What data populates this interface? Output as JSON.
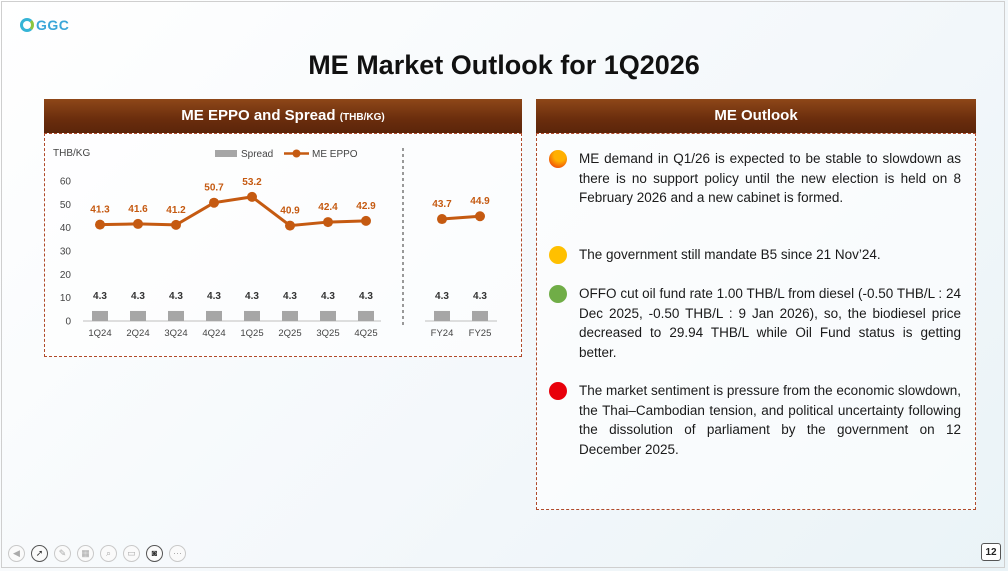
{
  "logo": {
    "text": "GGC"
  },
  "slide": {
    "title": "ME Market Outlook for 1Q2026",
    "page_number": "12"
  },
  "left_panel": {
    "title": "ME EPPO and Spread",
    "unit": "(THB/KG)"
  },
  "right_panel": {
    "title": "ME Outlook"
  },
  "chart_data": {
    "type": "bar+line",
    "ylabel": "THB/KG",
    "ylim": [
      0,
      60
    ],
    "yticks": [
      0,
      10,
      20,
      30,
      40,
      50,
      60
    ],
    "grid": false,
    "legend": [
      "Spread",
      "ME EPPO"
    ],
    "categories": [
      "1Q24",
      "2Q24",
      "3Q24",
      "4Q24",
      "1Q25",
      "2Q25",
      "3Q25",
      "4Q25",
      "FY24",
      "FY25"
    ],
    "series": [
      {
        "name": "Spread",
        "kind": "bar",
        "values": [
          4.3,
          4.3,
          4.3,
          4.3,
          4.3,
          4.3,
          4.3,
          4.3,
          4.3,
          4.3
        ]
      },
      {
        "name": "ME EPPO",
        "kind": "line",
        "segments": [
          [
            0,
            7
          ],
          [
            8,
            9
          ]
        ],
        "values": [
          41.3,
          41.6,
          41.2,
          50.7,
          53.2,
          40.9,
          42.4,
          42.9,
          43.7,
          44.9
        ]
      }
    ],
    "colors": {
      "spread": "#a6a6a6",
      "eppo": "#c55a11"
    }
  },
  "outlook": [
    {
      "color": "#ffb000",
      "gradient": "#e8240c",
      "text": "ME demand in Q1/26 is expected to be stable to slowdown as there is no support policy until the new election is held  on 8 February 2026 and a new cabinet is formed."
    },
    {
      "color": "#ffc000",
      "gradient": "",
      "text": "The government still mandate B5 since 21 Nov’24."
    },
    {
      "color": "#70ad47",
      "gradient": "",
      "text": "OFFO cut oil fund rate 1.00 THB/L from diesel (-0.50 THB/L : 24 Dec 2025, -0.50 THB/L : 9 Jan 2026), so, the biodiesel price decreased to 29.94 THB/L while Oil Fund status is getting better."
    },
    {
      "color": "#e8000b",
      "gradient": "",
      "text": "The market sentiment is pressure from the economic slowdown, the Thai–Cambodian tension, and political uncertainty following the dissolution of parliament by the government on 12 December 2025."
    }
  ],
  "toolbar": [
    {
      "icon": "prev-icon",
      "glyph": "◀"
    },
    {
      "icon": "pointer-icon",
      "glyph": "➚"
    },
    {
      "icon": "pen-icon",
      "glyph": "✎"
    },
    {
      "icon": "slides-icon",
      "glyph": "▦"
    },
    {
      "icon": "zoom-icon",
      "glyph": "⌕"
    },
    {
      "icon": "subtitles-icon",
      "glyph": "▭"
    },
    {
      "icon": "camera-icon",
      "glyph": "◙"
    },
    {
      "icon": "more-icon",
      "glyph": "⋯"
    }
  ]
}
